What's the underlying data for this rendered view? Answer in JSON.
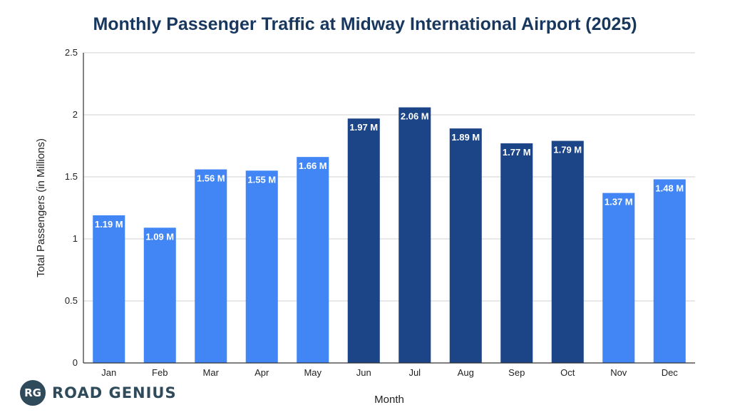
{
  "chart_data": {
    "type": "bar",
    "title": "Monthly Passenger Traffic at Midway International Airport (2025)",
    "xlabel": "Month",
    "ylabel": "Total Passengers (in Millions)",
    "ylim": [
      0,
      2.5
    ],
    "yticks": [
      "0",
      "0.5",
      "1",
      "1.5",
      "2",
      "2.5"
    ],
    "grid": true,
    "categories": [
      "Jan",
      "Feb",
      "Mar",
      "Apr",
      "May",
      "Jun",
      "Jul",
      "Aug",
      "Sep",
      "Oct",
      "Nov",
      "Dec"
    ],
    "values": [
      1.19,
      1.09,
      1.56,
      1.55,
      1.66,
      1.97,
      2.06,
      1.89,
      1.77,
      1.79,
      1.37,
      1.48
    ],
    "labels": [
      "1.19 M",
      "1.09 M",
      "1.56 M",
      "1.55 M",
      "1.66 M",
      "1.97 M",
      "2.06 M",
      "1.89 M",
      "1.77 M",
      "1.79 M",
      "1.37 M",
      "1.48 M"
    ],
    "highlight": [
      false,
      false,
      false,
      false,
      false,
      true,
      true,
      true,
      true,
      true,
      false,
      false
    ]
  },
  "colors": {
    "title": "#17375e",
    "bar": "#4285f4",
    "bar_highlight": "#1c4587",
    "grid": "#d0d0d0",
    "axis": "#333333"
  },
  "logo": {
    "badge": "RG",
    "text": "ROAD GENIUS"
  }
}
